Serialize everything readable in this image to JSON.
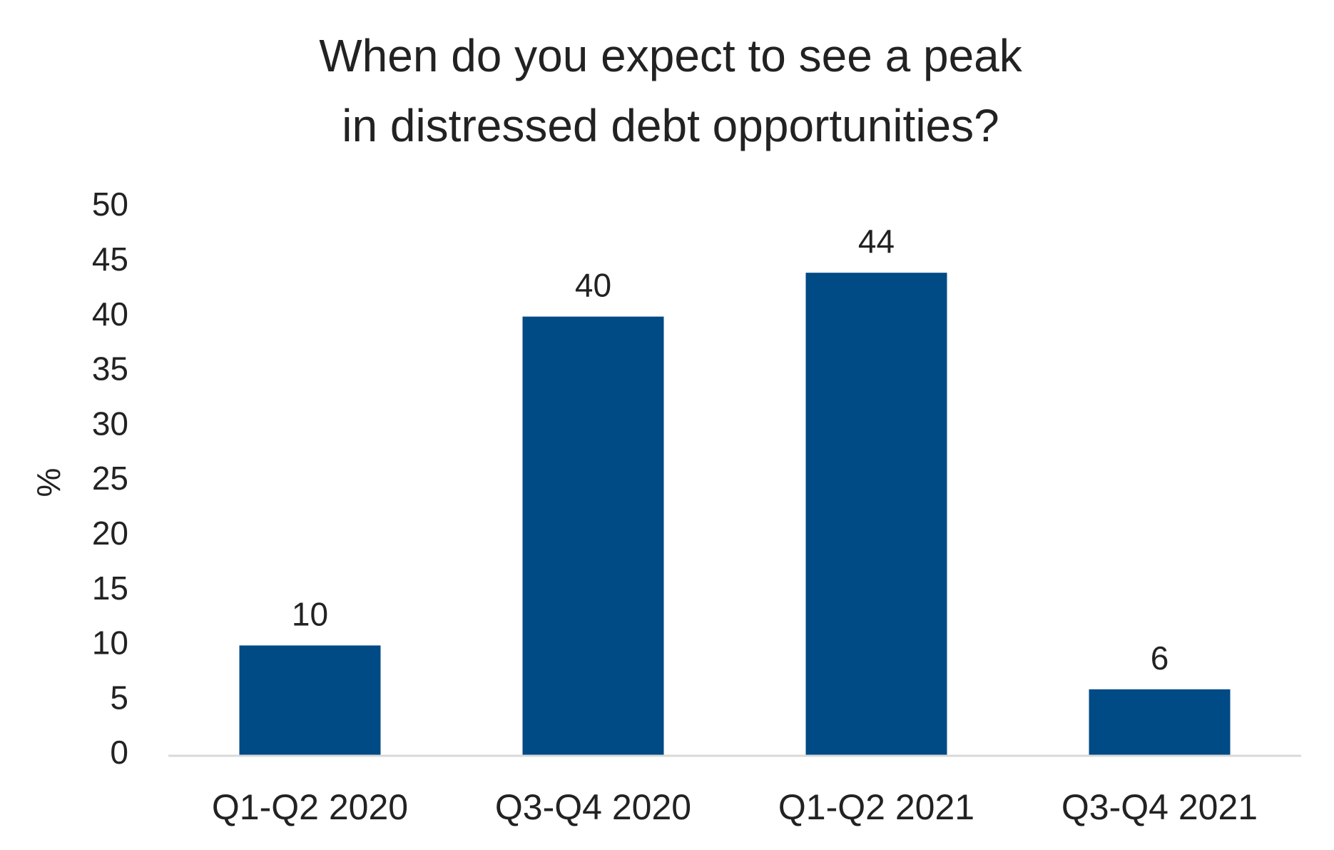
{
  "chart_data": {
    "type": "bar",
    "title_lines": [
      "When do you expect to see a peak",
      "in distressed debt opportunities?"
    ],
    "categories": [
      "Q1-Q2 2020",
      "Q3-Q4 2020",
      "Q1-Q2 2021",
      "Q3-Q4 2021"
    ],
    "values": [
      10,
      40,
      44,
      6
    ],
    "data_labels": [
      "10",
      "40",
      "44",
      "6"
    ],
    "ylabel": "%",
    "xlabel": "",
    "ylim": [
      0,
      50
    ],
    "yticks": [
      "0",
      "5",
      "10",
      "15",
      "20",
      "25",
      "30",
      "35",
      "40",
      "45",
      "50"
    ],
    "grid": false,
    "legend": "none",
    "bar_color": "#004a85",
    "axis_color": "#d9d9d9"
  }
}
